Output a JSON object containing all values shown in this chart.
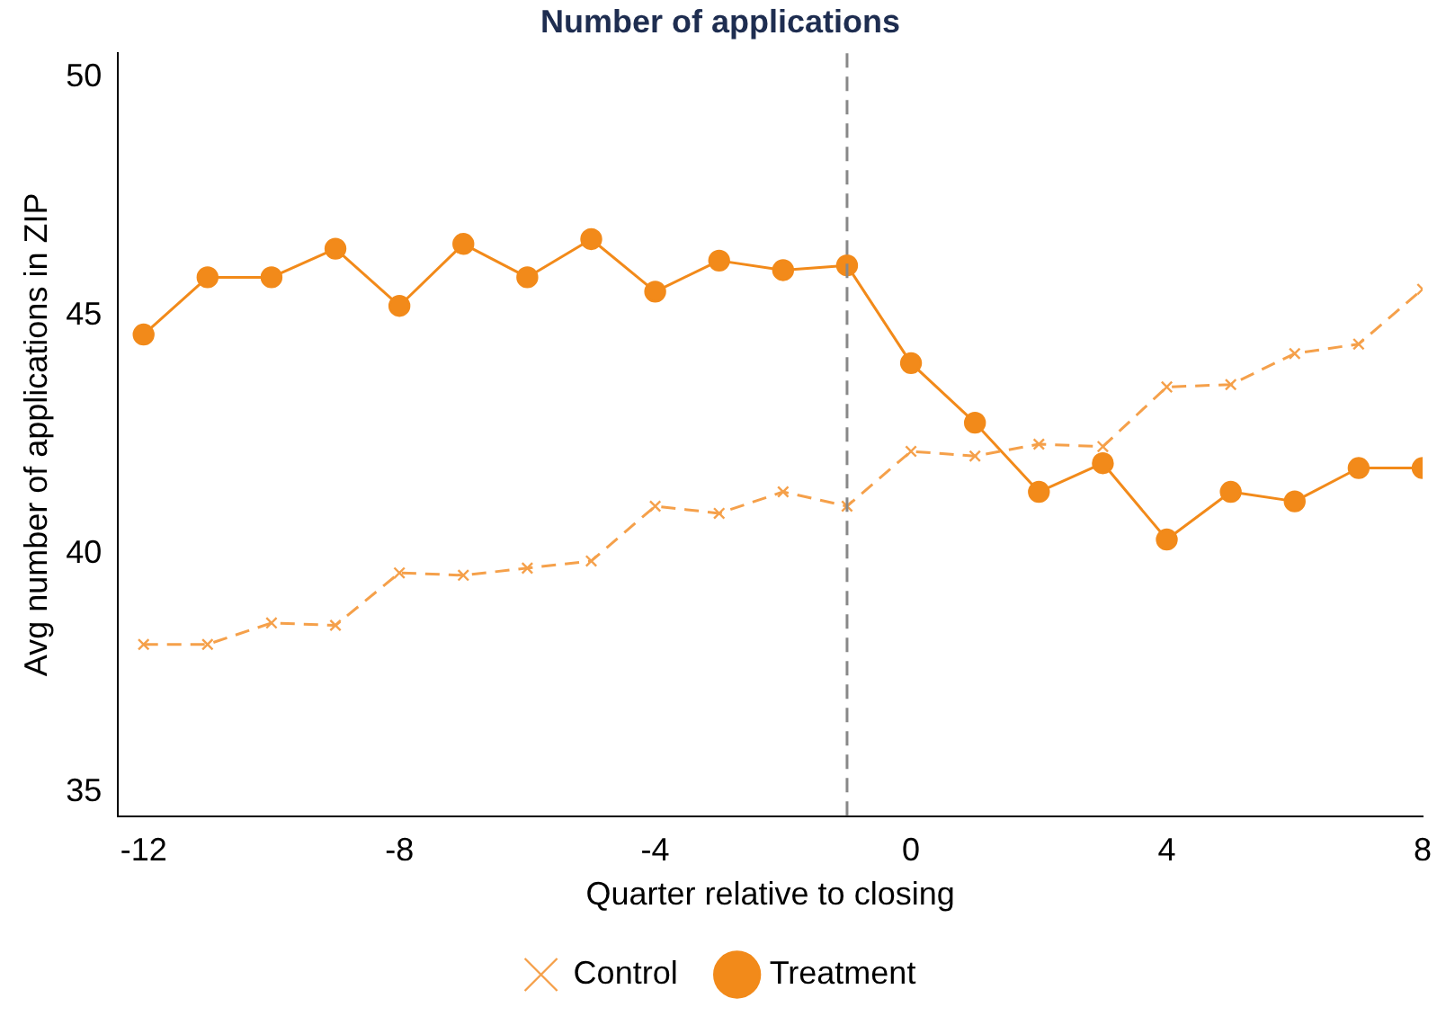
{
  "chart_data": {
    "type": "line",
    "title": "Number of applications",
    "xlabel": "Quarter relative to closing",
    "ylabel": "Avg number of applications in ZIP",
    "x": [
      -12,
      -11,
      -10,
      -9,
      -8,
      -7,
      -6,
      -5,
      -4,
      -3,
      -2,
      -1,
      0,
      1,
      2,
      3,
      4,
      5,
      6,
      7,
      8
    ],
    "series": [
      {
        "name": "Control",
        "color": "#f5a04a",
        "marker": "cross",
        "line_style": "dashed",
        "values": [
          38.1,
          38.1,
          38.55,
          38.5,
          39.6,
          39.55,
          39.7,
          39.85,
          41.0,
          40.85,
          41.3,
          41.0,
          42.15,
          42.05,
          42.3,
          42.25,
          43.5,
          43.55,
          44.2,
          44.4,
          45.55
        ]
      },
      {
        "name": "Treatment",
        "color": "#f28a1a",
        "marker": "circle",
        "line_style": "solid",
        "values": [
          44.6,
          45.8,
          45.8,
          46.4,
          45.2,
          46.5,
          45.8,
          46.6,
          45.5,
          46.15,
          45.95,
          46.05,
          44.0,
          42.75,
          41.3,
          41.9,
          40.3,
          41.3,
          41.1,
          41.8,
          41.8
        ]
      }
    ],
    "xlim": [
      -12.4,
      8
    ],
    "xticks": [
      -12,
      -8,
      -4,
      0,
      4,
      8
    ],
    "ylim": [
      34.5,
      50.5
    ],
    "yticks": [
      35,
      40,
      45,
      50
    ],
    "ref_lines": [
      {
        "axis": "x",
        "value": -1,
        "color": "#888888",
        "line_style": "dashed"
      }
    ],
    "grid": false,
    "legend": "bottom"
  }
}
